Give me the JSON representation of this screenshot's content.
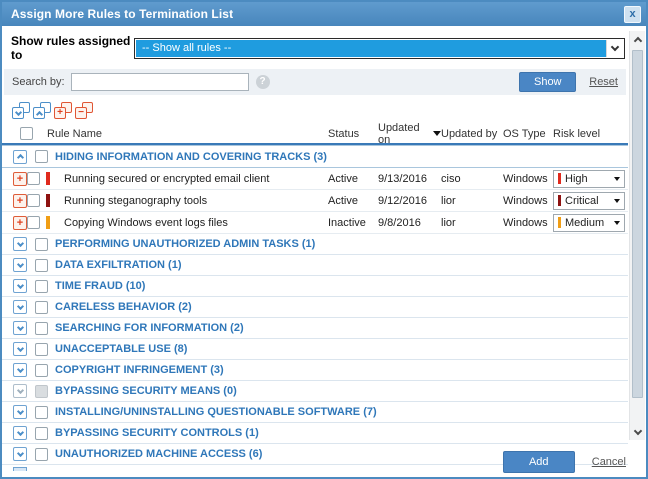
{
  "dialog": {
    "title": "Assign More Rules to Termination List",
    "close": "x"
  },
  "filter": {
    "label": "Show rules assigned to",
    "selected": "-- Show all rules --"
  },
  "search": {
    "label": "Search by:",
    "value": "",
    "show": "Show",
    "reset": "Reset",
    "help": "?"
  },
  "toolbar": {
    "icons": [
      {
        "name": "expand-all-groups-icon",
        "color": "blue",
        "glyph": "chevron-down"
      },
      {
        "name": "collapse-all-groups-icon",
        "color": "blue",
        "glyph": "chevron-up"
      },
      {
        "name": "select-all-rules-icon",
        "color": "red",
        "glyph": "plus"
      },
      {
        "name": "deselect-all-rules-icon",
        "color": "red",
        "glyph": "minus"
      }
    ]
  },
  "table": {
    "headers": {
      "rule_name": "Rule Name",
      "status": "Status",
      "updated_on": "Updated on",
      "updated_by": "Updated by",
      "os_type": "OS Type",
      "risk_level": "Risk level"
    },
    "sort": {
      "column": "Updated on",
      "direction": "desc"
    },
    "groups": [
      {
        "label": "HIDING INFORMATION AND COVERING TRACKS (3)",
        "expanded": true,
        "disabled": false,
        "rules": [
          {
            "name": "Running secured or encrypted email client",
            "status": "Active",
            "updated_on": "9/13/2016",
            "updated_by": "ciso",
            "os_type": "Windows",
            "risk": "High",
            "risk_color": "#e02a1d"
          },
          {
            "name": "Running steganography tools",
            "status": "Active",
            "updated_on": "9/12/2016",
            "updated_by": "lior",
            "os_type": "Windows",
            "risk": "Critical",
            "risk_color": "#8e1211"
          },
          {
            "name": "Copying Windows event logs files",
            "status": "Inactive",
            "updated_on": "9/8/2016",
            "updated_by": "lior",
            "os_type": "Windows",
            "risk": "Medium",
            "risk_color": "#f09e16"
          }
        ]
      },
      {
        "label": "PERFORMING UNAUTHORIZED ADMIN TASKS (1)",
        "expanded": false,
        "disabled": false,
        "rules": []
      },
      {
        "label": "DATA EXFILTRATION (1)",
        "expanded": false,
        "disabled": false,
        "rules": []
      },
      {
        "label": "TIME FRAUD (10)",
        "expanded": false,
        "disabled": false,
        "rules": []
      },
      {
        "label": "CARELESS BEHAVIOR (2)",
        "expanded": false,
        "disabled": false,
        "rules": []
      },
      {
        "label": "SEARCHING FOR INFORMATION (2)",
        "expanded": false,
        "disabled": false,
        "rules": []
      },
      {
        "label": "UNACCEPTABLE USE (8)",
        "expanded": false,
        "disabled": false,
        "rules": []
      },
      {
        "label": "COPYRIGHT INFRINGEMENT (3)",
        "expanded": false,
        "disabled": false,
        "rules": []
      },
      {
        "label": "BYPASSING SECURITY MEANS (0)",
        "expanded": false,
        "disabled": true,
        "rules": []
      },
      {
        "label": "INSTALLING/UNINSTALLING QUESTIONABLE SOFTWARE (7)",
        "expanded": false,
        "disabled": false,
        "rules": []
      },
      {
        "label": "BYPASSING SECURITY CONTROLS (1)",
        "expanded": false,
        "disabled": false,
        "rules": []
      },
      {
        "label": "UNAUTHORIZED MACHINE ACCESS (6)",
        "expanded": false,
        "disabled": false,
        "rules": []
      }
    ]
  },
  "footer": {
    "add": "Add",
    "cancel": "Cancel"
  },
  "colors": {
    "titlebar_blue": "#4e8fc6",
    "accent_blue": "#4a86c5",
    "select_highlight": "#1f9cdf",
    "category_text": "#2f77b9",
    "risk_high": "#e02a1d",
    "risk_critical": "#8e1211",
    "risk_medium": "#f09e16",
    "icon_red": "#e05634",
    "icon_blue": "#4c8fc9"
  }
}
